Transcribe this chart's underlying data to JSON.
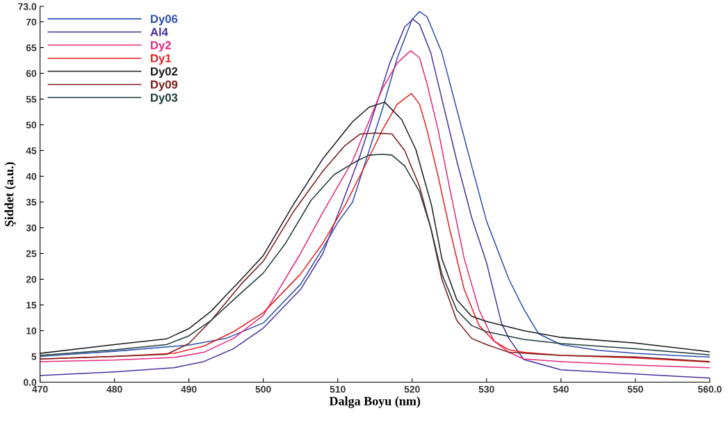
{
  "chart_data": {
    "type": "line",
    "xlabel": "Dalga Boyu (nm)",
    "ylabel": "Şiddet (a.u.)",
    "xlim": [
      470,
      560
    ],
    "xticks": [
      470,
      480,
      490,
      500,
      510,
      520,
      530,
      540,
      550,
      {
        "value": 560,
        "label": "560.0"
      }
    ],
    "ylim": [
      0,
      73
    ],
    "yticks": [
      {
        "value": 0,
        "label": "0.0"
      },
      5,
      10,
      15,
      20,
      25,
      30,
      35,
      40,
      45,
      50,
      55,
      60,
      65,
      70,
      {
        "value": 73,
        "label": "73.0"
      }
    ],
    "grid": false,
    "legend": "top left",
    "marker": "none",
    "line_style": "solid",
    "series": [
      {
        "name": "Dy06",
        "color": "#2b4fb0",
        "x": [
          470,
          480,
          490,
          495,
          500,
          505,
          508,
          510,
          512,
          514,
          516,
          518,
          520,
          521,
          522,
          524,
          526,
          528,
          530,
          533,
          535,
          537,
          540,
          545,
          550,
          555,
          560
        ],
        "values": [
          5.0,
          6.0,
          7.2,
          8.5,
          11.5,
          19,
          26,
          31,
          35,
          44,
          53,
          63,
          70.5,
          72,
          71,
          64,
          53,
          42,
          31.3,
          20,
          14.2,
          9.4,
          7.3,
          6.2,
          5.6,
          5.2,
          4.9
        ]
      },
      {
        "name": "Al4",
        "color": "#4b2fa0",
        "x": [
          470,
          480,
          488,
          492,
          496,
          500,
          505,
          508,
          510.5,
          513,
          515,
          517,
          519,
          520.1,
          521,
          522.5,
          524,
          526,
          528,
          530,
          532,
          533,
          535,
          540,
          545,
          550,
          555,
          560
        ],
        "values": [
          1.3,
          2.0,
          2.8,
          4,
          6.5,
          10.5,
          18,
          25,
          34.4,
          44,
          53,
          62,
          69,
          70.5,
          69.5,
          64,
          55,
          43,
          32,
          23.2,
          11.5,
          8.5,
          4.4,
          2.4,
          2.0,
          1.6,
          1.2,
          0.8
        ]
      },
      {
        "name": "Dy2",
        "color": "#e8287a",
        "x": [
          470,
          480,
          488,
          492,
          496,
          500,
          505,
          508,
          510,
          512,
          514,
          516,
          518,
          519.8,
          521,
          522,
          523.5,
          525,
          527,
          529,
          531,
          533,
          535,
          540,
          550,
          560
        ],
        "values": [
          4.0,
          4.3,
          4.8,
          5.8,
          8.5,
          13,
          25,
          33,
          38,
          43,
          50,
          57,
          62,
          64.4,
          63,
          58,
          49,
          38,
          24,
          14,
          8,
          5.8,
          4.5,
          4.0,
          3.3,
          2.8
        ]
      },
      {
        "name": "Dy1",
        "color": "#e82020",
        "x": [
          470,
          480,
          488,
          492,
          496,
          500,
          505,
          508,
          511,
          514,
          516,
          518,
          519.9,
          521,
          522,
          523.5,
          525,
          527,
          529,
          531,
          533,
          535,
          540,
          550,
          560
        ],
        "values": [
          4.5,
          5.0,
          5.6,
          7,
          9.8,
          13.5,
          21,
          27,
          34.4,
          43,
          49,
          54,
          56.1,
          54,
          49,
          40,
          30,
          18,
          11,
          8,
          6.3,
          5.8,
          5.2,
          4.7,
          3.9
        ]
      },
      {
        "name": "Dy02",
        "color": "#1a1a1a",
        "x": [
          470,
          480,
          487,
          490,
          493,
          495,
          497,
          500,
          504,
          508,
          512,
          514.2,
          516.3,
          518.6,
          520.5,
          522.6,
          524,
          526,
          528,
          530,
          535,
          540,
          550,
          560
        ],
        "values": [
          5.6,
          7.3,
          8.4,
          10.4,
          13.8,
          16.9,
          19.9,
          24.6,
          34.4,
          43.4,
          50.6,
          53.4,
          54.4,
          51.0,
          45.2,
          34.4,
          24,
          16,
          12.8,
          11.8,
          10,
          8.7,
          7.6,
          5.9
        ]
      },
      {
        "name": "Dy09",
        "color": "#7a1a1a",
        "x": [
          470,
          480,
          487,
          490,
          493,
          495,
          497,
          500,
          504,
          508,
          511,
          513,
          515,
          517.3,
          519,
          521,
          522.5,
          524,
          526,
          528,
          530,
          533,
          540,
          550,
          560
        ],
        "values": [
          4.5,
          5.0,
          5.4,
          7.5,
          12,
          15.5,
          19,
          23.5,
          33,
          41,
          46,
          48.2,
          48.4,
          48.2,
          45,
          38,
          30,
          20,
          12,
          8.5,
          7.3,
          5.8,
          5.2,
          4.9,
          4.0
        ]
      },
      {
        "name": "Dy03",
        "color": "#1f3a3a",
        "x": [
          470,
          480,
          487,
          490,
          493,
          496,
          500,
          503,
          506.4,
          509.5,
          512.6,
          514.2,
          516,
          517.3,
          519,
          521,
          522.5,
          524,
          526,
          528,
          530,
          535,
          540,
          550,
          560
        ],
        "values": [
          5.2,
          6.3,
          7.3,
          9,
          12,
          16,
          21.2,
          27,
          35.3,
          40.3,
          43,
          44.1,
          44.3,
          44.1,
          42,
          37,
          30,
          21,
          14,
          11,
          9.8,
          8.3,
          7.5,
          6.5,
          5.3
        ]
      }
    ]
  }
}
